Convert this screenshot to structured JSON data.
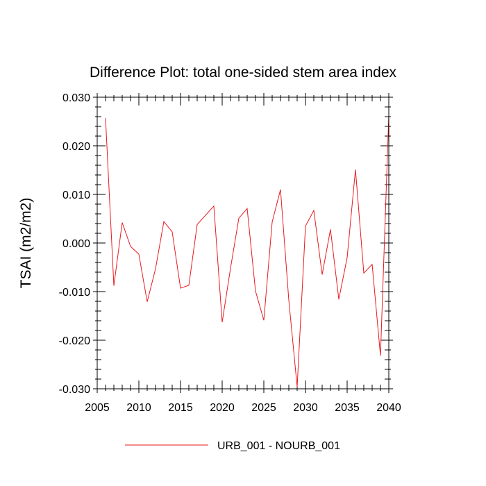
{
  "chart_data": {
    "type": "line",
    "title": "Difference Plot: total one-sided stem area index",
    "xlabel": "",
    "ylabel": "TSAI  (m2/m2)",
    "xlim": [
      2005,
      2040
    ],
    "ylim": [
      -0.03,
      0.03
    ],
    "xticks": [
      2005,
      2010,
      2015,
      2020,
      2025,
      2030,
      2035,
      2040
    ],
    "xtick_labels": [
      "2005",
      "2010",
      "2015",
      "2020",
      "2025",
      "2030",
      "2035",
      "2040"
    ],
    "yticks": [
      0.03,
      0.02,
      0.01,
      0.0,
      -0.01,
      -0.02,
      -0.03
    ],
    "ytick_labels": [
      "0.030",
      "0.020",
      "0.010",
      "0.000",
      "-0.010",
      "-0.020",
      "-0.030"
    ],
    "grid": false,
    "legend_position": "bottom",
    "series": [
      {
        "name": "URB_001 - NOURB_001",
        "color": "#e8191e",
        "x": [
          2006,
          2007,
          2008,
          2009,
          2010,
          2011,
          2012,
          2013,
          2014,
          2015,
          2016,
          2017,
          2018,
          2019,
          2020,
          2021,
          2022,
          2023,
          2024,
          2025,
          2026,
          2027,
          2028,
          2029,
          2030,
          2031,
          2032,
          2033,
          2034,
          2035,
          2036,
          2037,
          2038,
          2039,
          2040
        ],
        "y": [
          0.0257,
          -0.0088,
          0.0042,
          -0.0007,
          -0.0023,
          -0.0121,
          -0.0053,
          0.0044,
          0.0023,
          -0.0093,
          -0.0087,
          0.0038,
          0.0057,
          0.0076,
          -0.0163,
          -0.0052,
          0.0051,
          0.0071,
          -0.0099,
          -0.0159,
          0.0043,
          0.011,
          -0.0118,
          -0.0296,
          0.0035,
          0.0067,
          -0.0065,
          0.0028,
          -0.0116,
          -0.003,
          0.0151,
          -0.0062,
          -0.0044,
          -0.0232,
          0.0263
        ]
      }
    ]
  }
}
